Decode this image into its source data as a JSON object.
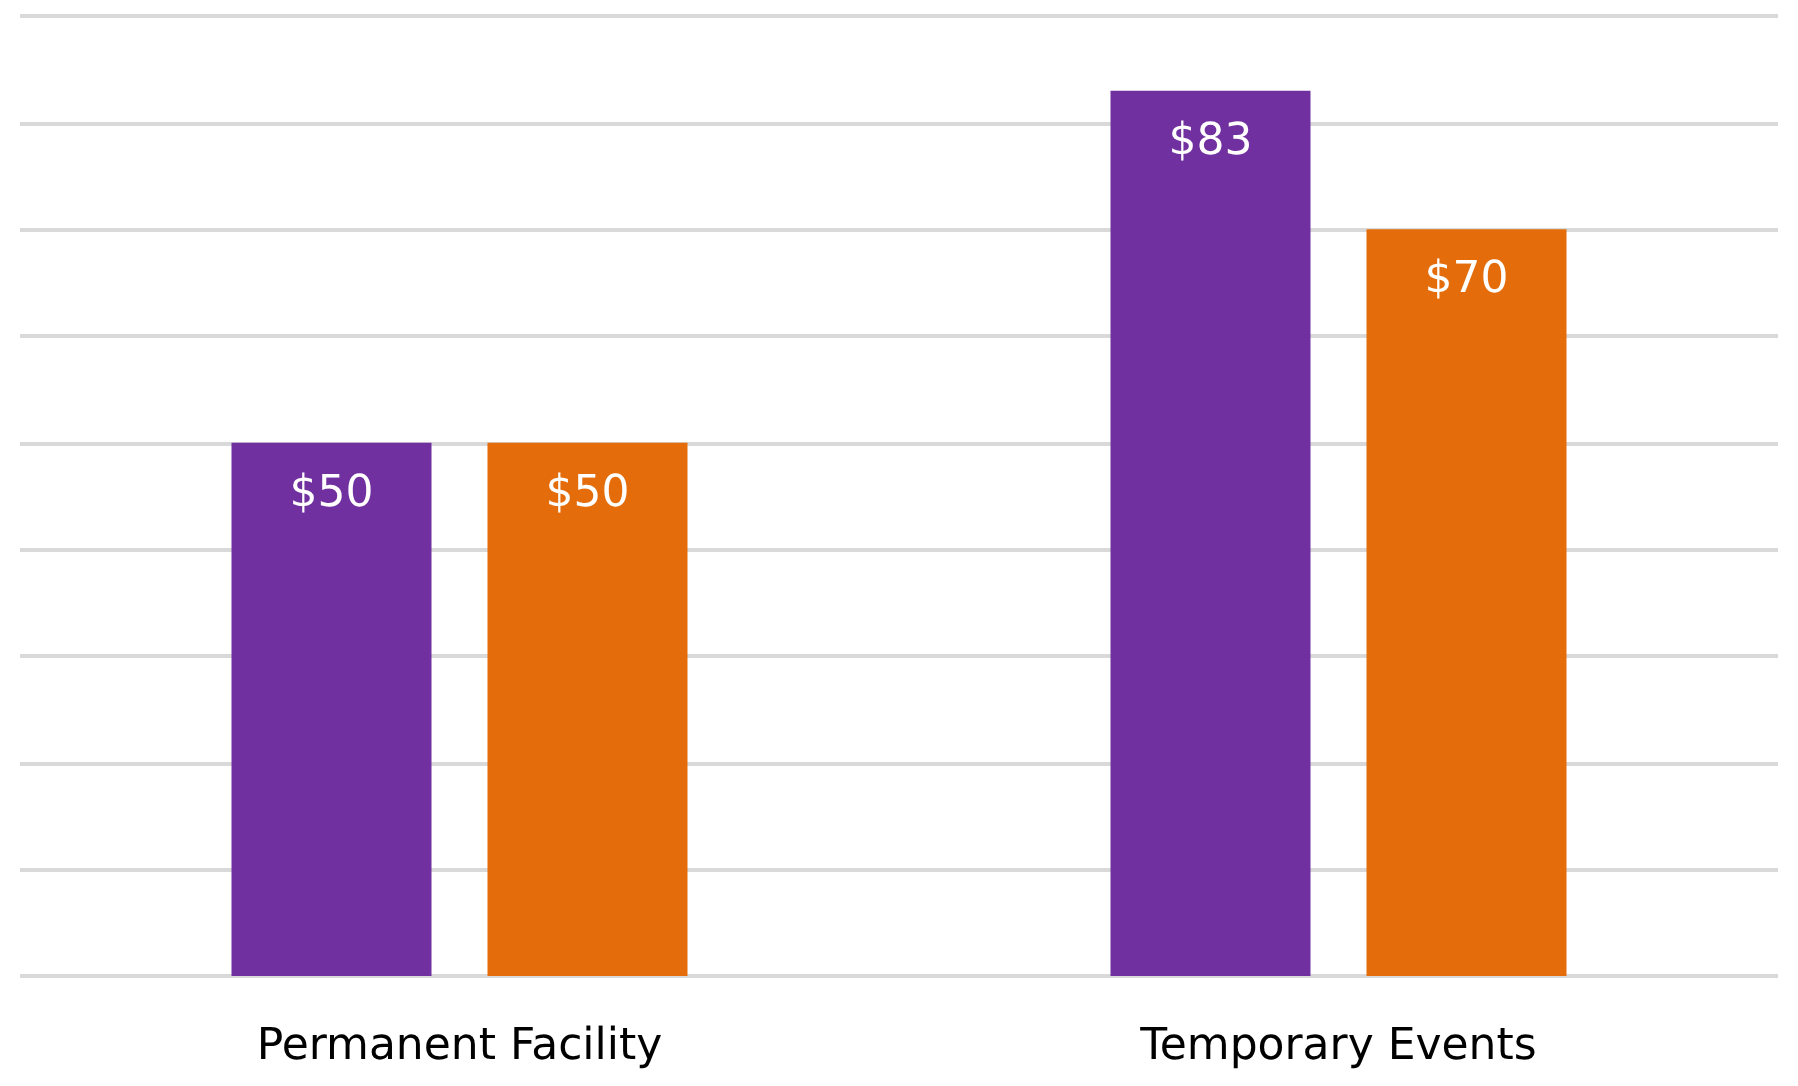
{
  "chart_data": {
    "type": "bar",
    "categories": [
      "Permanent Facility",
      "Temporary Events"
    ],
    "series": [
      {
        "color": "#7030a0",
        "values": [
          50,
          83
        ],
        "value_labels": [
          "$50",
          "$83"
        ]
      },
      {
        "color": "#e46c0a",
        "values": [
          50,
          70
        ],
        "value_labels": [
          "$50",
          "$70"
        ]
      }
    ],
    "ylim": [
      0,
      90
    ],
    "yticks": [
      {
        "value": 0,
        "label": null
      },
      {
        "value": 10,
        "label": null
      },
      {
        "value": 20,
        "label": null
      },
      {
        "value": 30,
        "label": null
      },
      {
        "value": 40,
        "label": null
      },
      {
        "value": 50,
        "label": null
      },
      {
        "value": 60,
        "label": null
      },
      {
        "value": 70,
        "label": null
      },
      {
        "value": 80,
        "label": null
      },
      {
        "value": 90,
        "label": null
      }
    ],
    "grid": "y",
    "tick_labels": "x"
  }
}
